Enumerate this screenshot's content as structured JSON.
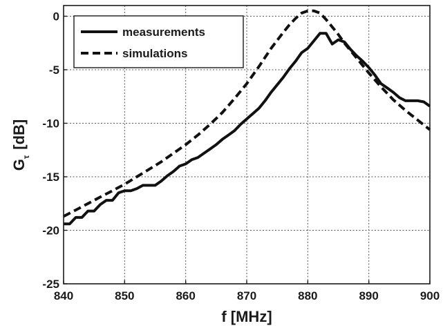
{
  "chart_data": {
    "type": "line",
    "xlabel": "f [MHz]",
    "ylabel": "G",
    "ylabel_subscript": "τ",
    "ylabel_unit": "[dB]",
    "xlim": [
      840,
      900
    ],
    "ylim": [
      -25,
      1
    ],
    "xticks": [
      840,
      850,
      860,
      870,
      880,
      890,
      900
    ],
    "yticks": [
      0,
      -5,
      -10,
      -15,
      -20,
      -25
    ],
    "grid": true,
    "legend_position": "top-left",
    "series": [
      {
        "name": "measurements",
        "style": "solid",
        "color": "#111111",
        "x": [
          840,
          841,
          842,
          843,
          844,
          845,
          846,
          847,
          848,
          849,
          850,
          851,
          852,
          853,
          854,
          855,
          856,
          857,
          858,
          859,
          860,
          861,
          862,
          863,
          864,
          865,
          866,
          867,
          868,
          869,
          870,
          871,
          872,
          873,
          874,
          875,
          876,
          877,
          878,
          879,
          880,
          881,
          882,
          883,
          884,
          885,
          886,
          887,
          888,
          889,
          890,
          891,
          892,
          893,
          894,
          895,
          896,
          897,
          898,
          899,
          900
        ],
        "y": [
          -19.4,
          -19.4,
          -18.8,
          -18.8,
          -18.2,
          -18.2,
          -17.6,
          -17.2,
          -17.2,
          -16.5,
          -16.3,
          -16.3,
          -16.1,
          -15.8,
          -15.8,
          -15.8,
          -15.4,
          -14.9,
          -14.5,
          -14.0,
          -13.8,
          -13.4,
          -13.2,
          -12.8,
          -12.4,
          -12.0,
          -11.5,
          -11.1,
          -10.7,
          -10.1,
          -9.6,
          -9.1,
          -8.6,
          -7.9,
          -7.1,
          -6.4,
          -5.7,
          -4.9,
          -4.2,
          -3.4,
          -3.0,
          -2.3,
          -1.6,
          -1.6,
          -2.6,
          -2.2,
          -2.4,
          -3.1,
          -3.7,
          -4.2,
          -4.8,
          -5.5,
          -6.3,
          -6.7,
          -7.1,
          -7.6,
          -7.9,
          -7.9,
          -7.9,
          -8.0,
          -8.4
        ]
      },
      {
        "name": "simulations",
        "style": "dashed",
        "color": "#111111",
        "x": [
          840,
          842,
          844,
          846,
          848,
          850,
          852,
          854,
          856,
          858,
          860,
          862,
          864,
          866,
          868,
          870,
          872,
          874,
          876,
          877,
          878,
          879,
          880,
          881,
          882,
          883,
          884,
          885,
          886,
          888,
          890,
          892,
          894,
          896,
          898,
          900
        ],
        "y": [
          -18.7,
          -18.1,
          -17.5,
          -16.9,
          -16.3,
          -15.7,
          -15.0,
          -14.3,
          -13.6,
          -12.8,
          -12.0,
          -11.1,
          -10.1,
          -9.0,
          -7.7,
          -6.3,
          -4.7,
          -3.0,
          -1.5,
          -0.8,
          -0.2,
          0.3,
          0.5,
          0.5,
          0.3,
          -0.3,
          -1.0,
          -1.7,
          -2.5,
          -3.9,
          -5.3,
          -6.6,
          -7.8,
          -8.8,
          -9.7,
          -10.6
        ]
      }
    ]
  }
}
